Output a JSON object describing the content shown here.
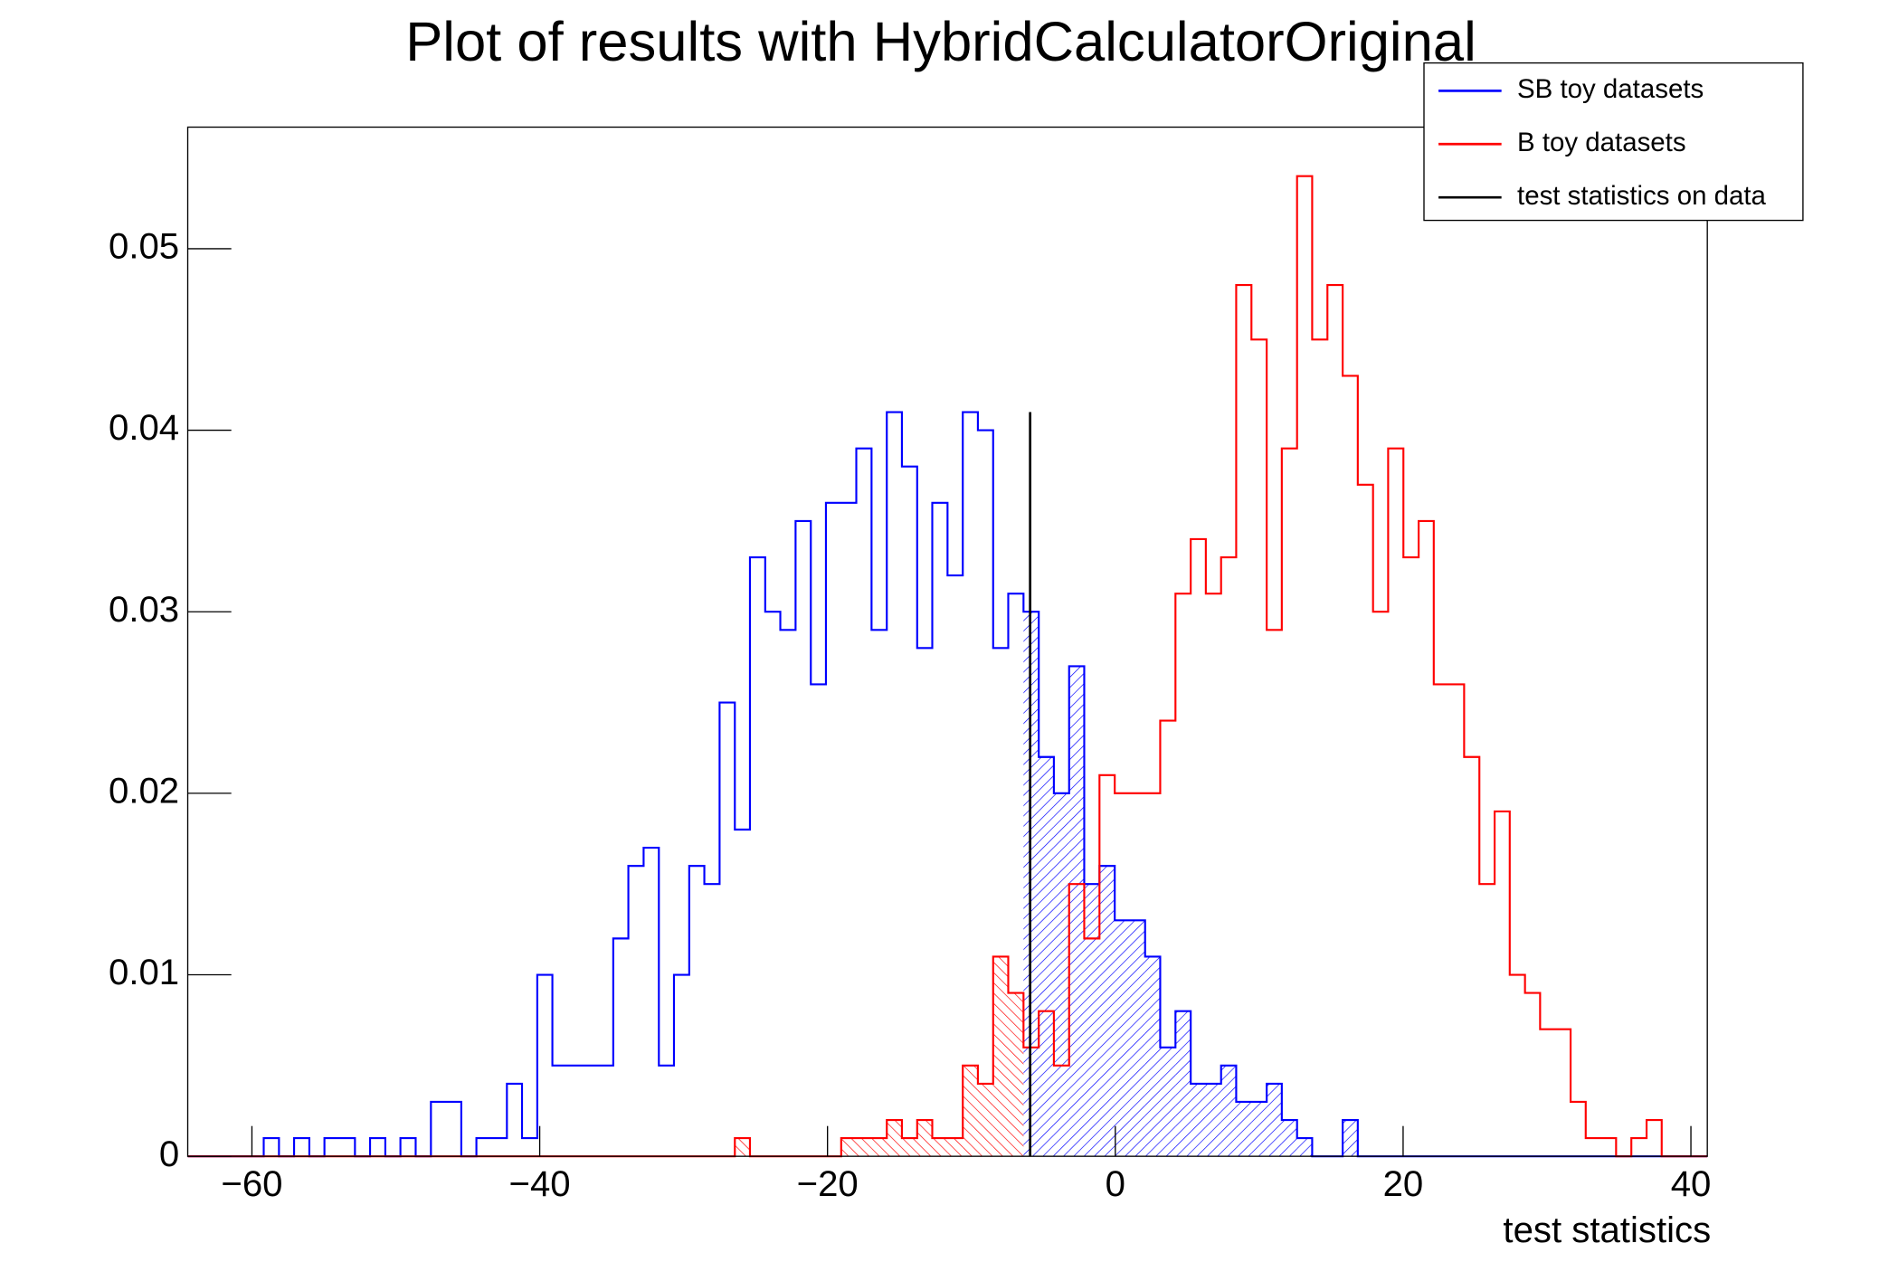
{
  "chart_data": {
    "type": "histogram",
    "title": "Plot of results with HybridCalculatorOriginal",
    "x_label": "test statistics",
    "bins": [
      -64.46,
      -63.4,
      -62.35,
      -61.29,
      -60.24,
      -59.18,
      -58.12,
      -57.07,
      -56.01,
      -54.96,
      -53.9,
      -52.84,
      -51.79,
      -50.73,
      -49.68,
      -48.62,
      -47.56,
      -46.51,
      -45.45,
      -44.4,
      -43.34,
      -42.28,
      -41.23,
      -40.17,
      -39.12,
      -38.06,
      -37,
      -35.95,
      -34.89,
      -33.84,
      -32.78,
      -31.72,
      -30.67,
      -29.61,
      -28.56,
      -27.5,
      -26.44,
      -25.39,
      -24.33,
      -23.28,
      -22.22,
      -21.16,
      -20.11,
      -19.05,
      -18,
      -16.94,
      -15.88,
      -14.83,
      -13.77,
      -12.72,
      -11.66,
      -10.6,
      -9.55,
      -8.49,
      -7.44,
      -6.38,
      -5.32,
      -4.27,
      -3.21,
      -2.16,
      -1.1,
      -0.04,
      1.01,
      2.07,
      3.12,
      4.18,
      5.24,
      6.29,
      7.35,
      8.4,
      9.46,
      10.52,
      11.57,
      12.63,
      13.68,
      14.74,
      15.8,
      16.85,
      17.91,
      18.96,
      20.02,
      21.08,
      22.13,
      23.19,
      24.24,
      25.3,
      26.36,
      27.41,
      28.47,
      29.52,
      30.58,
      31.64,
      32.69,
      33.75,
      34.8,
      35.86,
      36.92,
      37.97,
      39.03,
      40.08,
      41.14
    ],
    "series": [
      {
        "name": "SB toy datasets",
        "color": "#0000ff",
        "shade": "above",
        "values": [
          0,
          0,
          0,
          0,
          0,
          0.001,
          0,
          0.001,
          0,
          0.001,
          0.001,
          0,
          0.001,
          0,
          0.001,
          0,
          0.003,
          0.003,
          0,
          0.001,
          0.001,
          0.004,
          0.001,
          0.01,
          0.005,
          0.005,
          0.005,
          0.005,
          0.012,
          0.016,
          0.017,
          0.005,
          0.01,
          0.016,
          0.015,
          0.025,
          0.018,
          0.033,
          0.03,
          0.029,
          0.035,
          0.026,
          0.036,
          0.036,
          0.039,
          0.029,
          0.041,
          0.038,
          0.028,
          0.036,
          0.032,
          0.041,
          0.04,
          0.028,
          0.031,
          0.03,
          0.022,
          0.02,
          0.027,
          0.015,
          0.016,
          0.013,
          0.013,
          0.011,
          0.006,
          0.008,
          0.004,
          0.004,
          0.005,
          0.003,
          0.003,
          0.004,
          0.002,
          0.001,
          0,
          0,
          0.002,
          0,
          0,
          0,
          0,
          0,
          0,
          0,
          0,
          0,
          0,
          0,
          0,
          0,
          0,
          0,
          0,
          0,
          0,
          0,
          0,
          0,
          0,
          0
        ]
      },
      {
        "name": "B toy datasets",
        "color": "#ff0000",
        "shade": "below",
        "values": [
          0,
          0,
          0,
          0,
          0,
          0,
          0,
          0,
          0,
          0,
          0,
          0,
          0,
          0,
          0,
          0,
          0,
          0,
          0,
          0,
          0,
          0,
          0,
          0,
          0,
          0,
          0,
          0,
          0,
          0,
          0,
          0,
          0,
          0,
          0,
          0,
          0.001,
          0,
          0,
          0,
          0,
          0,
          0,
          0.001,
          0.001,
          0.001,
          0.002,
          0.001,
          0.002,
          0.001,
          0.001,
          0.005,
          0.004,
          0.011,
          0.009,
          0.006,
          0.008,
          0.005,
          0.015,
          0.012,
          0.021,
          0.02,
          0.02,
          0.02,
          0.024,
          0.031,
          0.034,
          0.031,
          0.033,
          0.048,
          0.045,
          0.029,
          0.039,
          0.054,
          0.045,
          0.048,
          0.043,
          0.037,
          0.03,
          0.039,
          0.033,
          0.035,
          0.026,
          0.026,
          0.022,
          0.015,
          0.019,
          0.01,
          0.009,
          0.007,
          0.007,
          0.003,
          0.001,
          0.001,
          0,
          0.001,
          0.002,
          0,
          0,
          0
        ]
      }
    ],
    "marker": {
      "name": "test statistics on data",
      "color": "#000000",
      "x": -5.92,
      "height": 0.041
    },
    "xlim": [
      -64.46,
      41.14
    ],
    "ylim": [
      0,
      0.0567
    ],
    "xticks": [
      {
        "value": -60,
        "label": "−60"
      },
      {
        "value": -40,
        "label": "−40"
      },
      {
        "value": -20,
        "label": "−20"
      },
      0,
      20,
      40
    ],
    "yticks": [
      0,
      0.01,
      0.02,
      0.03,
      0.04,
      0.05
    ],
    "legend": "top-right"
  }
}
